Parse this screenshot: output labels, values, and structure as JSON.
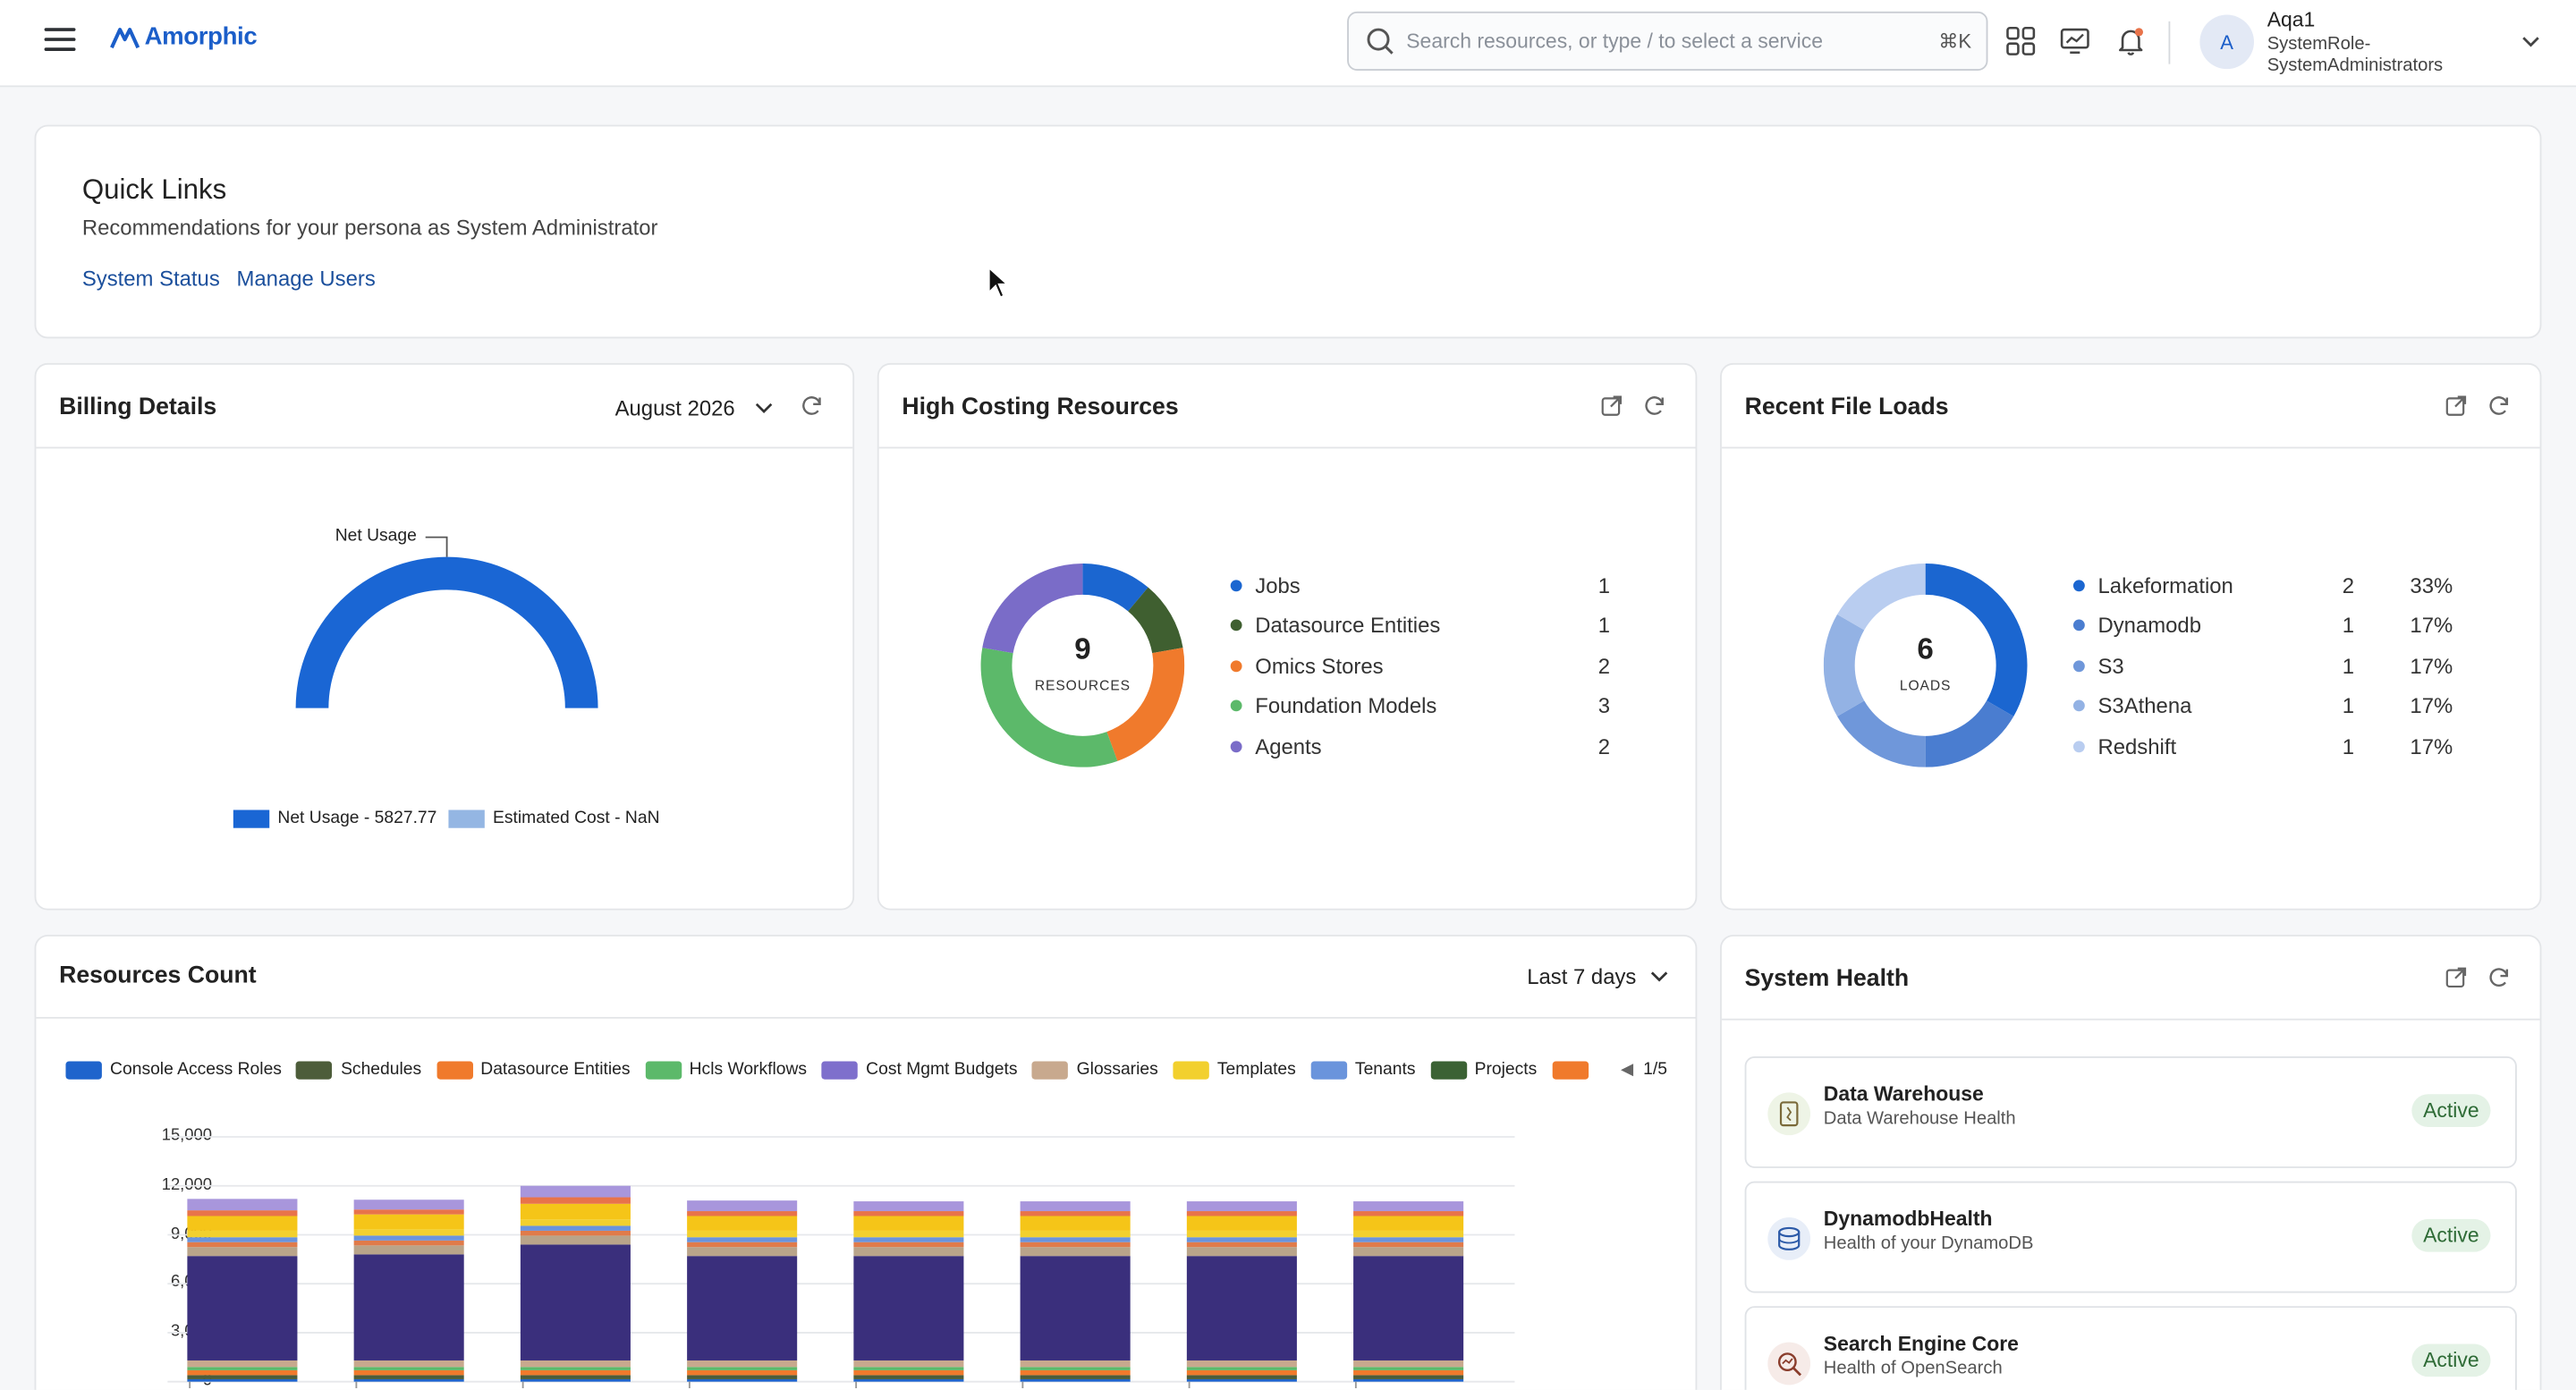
{
  "header": {
    "app_name": "Amorphic",
    "search_placeholder": "Search resources, or type / to select a service",
    "search_shortcut": "⌘K",
    "icons": [
      "apps-grid-icon",
      "monitor-chart-icon",
      "notification-bell-icon"
    ],
    "user": {
      "initial": "A",
      "name": "Aqa1",
      "role": "SystemRole-SystemAdministrators"
    }
  },
  "quick_links": {
    "title": "Quick Links",
    "subtitle": "Recommendations for your persona as System Administrator",
    "links": [
      "System Status",
      "Manage Users"
    ]
  },
  "billing": {
    "title": "Billing Details",
    "period": "August 2026",
    "gauge_label": "Net Usage",
    "net_usage_value": 5827.77,
    "legend": [
      {
        "label": "Net Usage - 5827.77",
        "color": "#1a66d4"
      },
      {
        "label": "Estimated Cost - NaN",
        "color": "#94b6e3"
      }
    ]
  },
  "high_costing": {
    "title": "High Costing Resources",
    "center_value": "9",
    "center_label": "RESOURCES",
    "items": [
      {
        "name": "Jobs",
        "value": "1",
        "color": "#1b66d0"
      },
      {
        "name": "Datasource Entities",
        "value": "1",
        "color": "#3f5f30"
      },
      {
        "name": "Omics Stores",
        "value": "2",
        "color": "#f07a2c"
      },
      {
        "name": "Foundation Models",
        "value": "3",
        "color": "#5cb96a"
      },
      {
        "name": "Agents",
        "value": "2",
        "color": "#7a6cc8"
      }
    ]
  },
  "recent_file_loads": {
    "title": "Recent File Loads",
    "center_value": "6",
    "center_label": "LOADS",
    "items": [
      {
        "name": "Lakeformation",
        "value": "2",
        "pct": "33%",
        "color": "#1b66d0"
      },
      {
        "name": "Dynamodb",
        "value": "1",
        "pct": "17%",
        "color": "#4a7dd0"
      },
      {
        "name": "S3",
        "value": "1",
        "pct": "17%",
        "color": "#6f97da"
      },
      {
        "name": "S3Athena",
        "value": "1",
        "pct": "17%",
        "color": "#93b2e4"
      },
      {
        "name": "Redshift",
        "value": "1",
        "pct": "17%",
        "color": "#b9cdf0"
      }
    ]
  },
  "resources_count": {
    "title": "Resources Count",
    "range": "Last 7 days",
    "legend_page": "1/5",
    "legend": [
      {
        "label": "Console Access Roles",
        "color": "#1f64cc"
      },
      {
        "label": "Schedules",
        "color": "#4d5d3a"
      },
      {
        "label": "Datasource Entities",
        "color": "#f07a2c"
      },
      {
        "label": "Hcls Workflows",
        "color": "#5cb96a"
      },
      {
        "label": "Cost Mgmt Budgets",
        "color": "#7e6fcc"
      },
      {
        "label": "Glossaries",
        "color": "#c8a98e"
      },
      {
        "label": "Templates",
        "color": "#f2d02e"
      },
      {
        "label": "Tenants",
        "color": "#6a94dc"
      },
      {
        "label": "Projects",
        "color": "#3b6234"
      },
      {
        "label": "",
        "color": "#f07a2c"
      }
    ]
  },
  "chart_data": {
    "type": "bar",
    "stacked": true,
    "y_ticks": [
      "15,000",
      "12,000",
      "9,000",
      "6,000",
      "3,000",
      "0"
    ],
    "ylim": [
      0,
      15000
    ],
    "categories": [
      "",
      "",
      "",
      "",
      "",
      "",
      "",
      ""
    ],
    "series": [
      {
        "name": "Console Access Roles",
        "values": [
          150,
          150,
          150,
          150,
          150,
          150,
          150,
          150
        ],
        "color": "#1f64cc"
      },
      {
        "name": "Schedules",
        "values": [
          250,
          250,
          250,
          250,
          250,
          250,
          250,
          250
        ],
        "color": "#4d5d3a"
      },
      {
        "name": "Datasource Entities",
        "values": [
          300,
          300,
          300,
          300,
          300,
          300,
          300,
          300
        ],
        "color": "#f07a2c"
      },
      {
        "name": "Hcls Workflows",
        "values": [
          200,
          200,
          200,
          200,
          200,
          200,
          200,
          200
        ],
        "color": "#5cb96a"
      },
      {
        "name": "",
        "values": [
          400,
          400,
          400,
          400,
          400,
          400,
          400,
          400
        ],
        "color": "#c8a98e"
      },
      {
        "name": "",
        "values": [
          6400,
          6500,
          7100,
          6400,
          6400,
          6400,
          6400,
          6400
        ],
        "color": "#3a2f7c"
      },
      {
        "name": "",
        "values": [
          550,
          550,
          550,
          550,
          550,
          550,
          550,
          550
        ],
        "color": "#b9a48a"
      },
      {
        "name": "",
        "values": [
          300,
          300,
          300,
          300,
          300,
          300,
          300,
          300
        ],
        "color": "#e07b4a"
      },
      {
        "name": "Tenants",
        "values": [
          300,
          300,
          300,
          300,
          300,
          300,
          300,
          300
        ],
        "color": "#6a94dc"
      },
      {
        "name": "",
        "values": [
          400,
          400,
          400,
          400,
          400,
          400,
          400,
          400
        ],
        "color": "#f2d02e"
      },
      {
        "name": "Templates",
        "values": [
          900,
          900,
          950,
          900,
          900,
          900,
          900,
          900
        ],
        "color": "#f5c518"
      },
      {
        "name": "",
        "values": [
          350,
          300,
          400,
          300,
          300,
          300,
          300,
          300
        ],
        "color": "#e8734a"
      },
      {
        "name": "Cost Mgmt Budgets",
        "values": [
          700,
          600,
          700,
          650,
          600,
          600,
          600,
          600
        ],
        "color": "#a896dc"
      }
    ]
  },
  "system_health": {
    "title": "System Health",
    "items": [
      {
        "name": "Data Warehouse",
        "desc": "Data Warehouse Health",
        "status": "Active",
        "icon": "data-warehouse-icon"
      },
      {
        "name": "DynamodbHealth",
        "desc": "Health of your DynamoDB",
        "status": "Active",
        "icon": "dynamodb-icon"
      },
      {
        "name": "Search Engine Core",
        "desc": "Health of OpenSearch",
        "status": "Active",
        "icon": "search-engine-icon"
      }
    ]
  }
}
